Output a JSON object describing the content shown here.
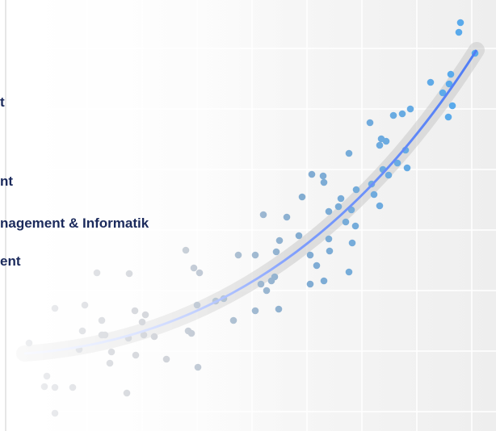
{
  "lines": [
    "t",
    "nt",
    "nagement & Informatik",
    "ent"
  ]
}
